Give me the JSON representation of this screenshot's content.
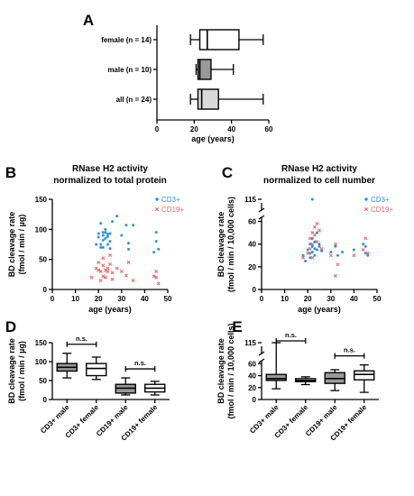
{
  "chart_data": [
    {
      "panel": "A",
      "type": "boxplot",
      "orientation": "horizontal",
      "xlabel": "age (years)",
      "xlim": [
        0,
        60
      ],
      "xticks": [
        0,
        20,
        40,
        60
      ],
      "categories": [
        "female (n = 14)",
        "male (n = 10)",
        "all (n = 24)"
      ],
      "boxes": [
        {
          "min": 18,
          "q1": 23,
          "median": 27,
          "q3": 44,
          "max": 57,
          "fill": "#ffffff"
        },
        {
          "min": 21,
          "q1": 22,
          "median": 23,
          "q3": 29,
          "max": 41,
          "fill": "#999999"
        },
        {
          "min": 18,
          "q1": 22,
          "median": 24,
          "q3": 33,
          "max": 57,
          "fill": "#d9d9d9"
        }
      ]
    },
    {
      "panel": "B",
      "type": "scatter",
      "title": "RNase H2 activity\nnormalized to total protein",
      "xlabel": "age (years)",
      "ylabel": "BD cleavage rate\n(fmol / min / µg)",
      "xlim": [
        0,
        50
      ],
      "ylim": [
        0,
        150
      ],
      "xticks": [
        0,
        10,
        20,
        30,
        40,
        50
      ],
      "yticks": [
        0,
        50,
        100,
        150
      ],
      "legend_position": "top-right",
      "series": [
        {
          "name": "CD3+",
          "marker": "circle",
          "color": "#2f8fe6",
          "points": [
            [
              19,
              75
            ],
            [
              20,
              93
            ],
            [
              20,
              87
            ],
            [
              21,
              75
            ],
            [
              21,
              70
            ],
            [
              21,
              110
            ],
            [
              22,
              95
            ],
            [
              22,
              90
            ],
            [
              22,
              82
            ],
            [
              22,
              70
            ],
            [
              23,
              95
            ],
            [
              23,
              85
            ],
            [
              23,
              100
            ],
            [
              24,
              92
            ],
            [
              24,
              88
            ],
            [
              24,
              75
            ],
            [
              25,
              93
            ],
            [
              25,
              80
            ],
            [
              25,
              68
            ],
            [
              26,
              113
            ],
            [
              28,
              122
            ],
            [
              30,
              90
            ],
            [
              32,
              107
            ],
            [
              33,
              77
            ],
            [
              33,
              67
            ],
            [
              35,
              107
            ],
            [
              44,
              62
            ],
            [
              45,
              80
            ],
            [
              45,
              95
            ],
            [
              46,
              67
            ]
          ]
        },
        {
          "name": "CD19+",
          "marker": "cross",
          "color": "#e86a6a",
          "points": [
            [
              17,
              20
            ],
            [
              19,
              35
            ],
            [
              20,
              45
            ],
            [
              20,
              32
            ],
            [
              21,
              30
            ],
            [
              21,
              15
            ],
            [
              22,
              52
            ],
            [
              22,
              40
            ],
            [
              22,
              22
            ],
            [
              23,
              32
            ],
            [
              23,
              20
            ],
            [
              24,
              35
            ],
            [
              24,
              30
            ],
            [
              25,
              57
            ],
            [
              25,
              42
            ],
            [
              26,
              28
            ],
            [
              26,
              17
            ],
            [
              28,
              35
            ],
            [
              30,
              30
            ],
            [
              32,
              23
            ],
            [
              33,
              45
            ],
            [
              35,
              15
            ],
            [
              44,
              22
            ],
            [
              45,
              30
            ],
            [
              45,
              20
            ],
            [
              46,
              10
            ]
          ]
        }
      ]
    },
    {
      "panel": "C",
      "type": "scatter",
      "title": "RNase H2 activity\nnormalized to cell number",
      "xlabel": "age (years)",
      "ylabel": "BD cleavage rate\n(fmol / min / 10,000 cells)",
      "xlim": [
        0,
        50
      ],
      "ylim": [
        0,
        115
      ],
      "y_axis_break": [
        62,
        110
      ],
      "xticks": [
        0,
        10,
        20,
        30,
        40,
        50
      ],
      "yticks": [
        0,
        20,
        40,
        60,
        115
      ],
      "legend_position": "top-right",
      "series": [
        {
          "name": "CD3+",
          "marker": "circle",
          "color": "#2f8fe6",
          "points": [
            [
              18,
              30
            ],
            [
              19,
              25
            ],
            [
              20,
              35
            ],
            [
              21,
              32
            ],
            [
              21,
              40
            ],
            [
              21,
              28
            ],
            [
              22,
              38
            ],
            [
              22,
              45
            ],
            [
              22,
              33
            ],
            [
              22,
              115
            ],
            [
              23,
              42
            ],
            [
              23,
              36
            ],
            [
              23,
              30
            ],
            [
              24,
              50
            ],
            [
              24,
              35
            ],
            [
              25,
              40
            ],
            [
              25,
              38
            ],
            [
              26,
              34
            ],
            [
              30,
              33
            ],
            [
              32,
              38
            ],
            [
              33,
              30
            ],
            [
              35,
              33
            ],
            [
              40,
              35
            ],
            [
              44,
              40
            ],
            [
              45,
              38
            ],
            [
              45,
              32
            ],
            [
              46,
              30
            ]
          ]
        },
        {
          "name": "CD19+",
          "marker": "cross",
          "color": "#e86a6a",
          "points": [
            [
              18,
              28
            ],
            [
              20,
              32
            ],
            [
              21,
              36
            ],
            [
              21,
              45
            ],
            [
              22,
              40
            ],
            [
              22,
              50
            ],
            [
              22,
              28
            ],
            [
              23,
              55
            ],
            [
              23,
              48
            ],
            [
              24,
              58
            ],
            [
              24,
              42
            ],
            [
              25,
              52
            ],
            [
              26,
              36
            ],
            [
              30,
              30
            ],
            [
              32,
              40
            ],
            [
              32,
              12
            ],
            [
              33,
              22
            ],
            [
              40,
              30
            ],
            [
              44,
              35
            ],
            [
              45,
              45
            ],
            [
              46,
              32
            ]
          ]
        }
      ]
    },
    {
      "panel": "D",
      "type": "boxplot",
      "orientation": "vertical",
      "ylabel": "BD cleavage rate\n(fmol / min / µg)",
      "ylim": [
        0,
        150
      ],
      "yticks": [
        0,
        50,
        100,
        150
      ],
      "categories": [
        "CD3+ male",
        "CD3+ female",
        "CD19+ male",
        "CD19+ female"
      ],
      "boxes": [
        {
          "min": 57,
          "q1": 75,
          "median": 85,
          "q3": 95,
          "max": 122,
          "fill": "#999999"
        },
        {
          "min": 53,
          "q1": 63,
          "median": 82,
          "q3": 95,
          "max": 112,
          "fill": "#ffffff"
        },
        {
          "min": 12,
          "q1": 17,
          "median": 30,
          "q3": 40,
          "max": 57,
          "fill": "#999999"
        },
        {
          "min": 12,
          "q1": 20,
          "median": 30,
          "q3": 40,
          "max": 48,
          "fill": "#ffffff"
        }
      ],
      "annotations": [
        {
          "text": "n.s.",
          "between": [
            0,
            1
          ]
        },
        {
          "text": "n.s.",
          "between": [
            2,
            3
          ]
        }
      ]
    },
    {
      "panel": "E",
      "type": "boxplot",
      "orientation": "vertical",
      "ylabel": "BD cleavage rate\n(fmol / min / 10,000 cells)",
      "ylim": [
        0,
        115
      ],
      "y_axis_break": [
        62,
        110
      ],
      "yticks": [
        0,
        20,
        40,
        60,
        115
      ],
      "categories": [
        "CD3+ male",
        "CD3+ female",
        "CD19+ male",
        "CD19+ female"
      ],
      "boxes": [
        {
          "min": 18,
          "q1": 32,
          "median": 35,
          "q3": 42,
          "max": 115,
          "fill": "#999999"
        },
        {
          "min": 25,
          "q1": 30,
          "median": 32,
          "q3": 35,
          "max": 38,
          "fill": "#ffffff"
        },
        {
          "min": 15,
          "q1": 27,
          "median": 35,
          "q3": 45,
          "max": 50,
          "fill": "#999999"
        },
        {
          "min": 12,
          "q1": 33,
          "median": 42,
          "q3": 48,
          "max": 58,
          "fill": "#ffffff"
        }
      ],
      "annotations": [
        {
          "text": "n.s.",
          "between": [
            0,
            1
          ]
        },
        {
          "text": "n.s.",
          "between": [
            2,
            3
          ]
        }
      ]
    }
  ],
  "panel_labels": [
    "A",
    "B",
    "C",
    "D",
    "E"
  ]
}
